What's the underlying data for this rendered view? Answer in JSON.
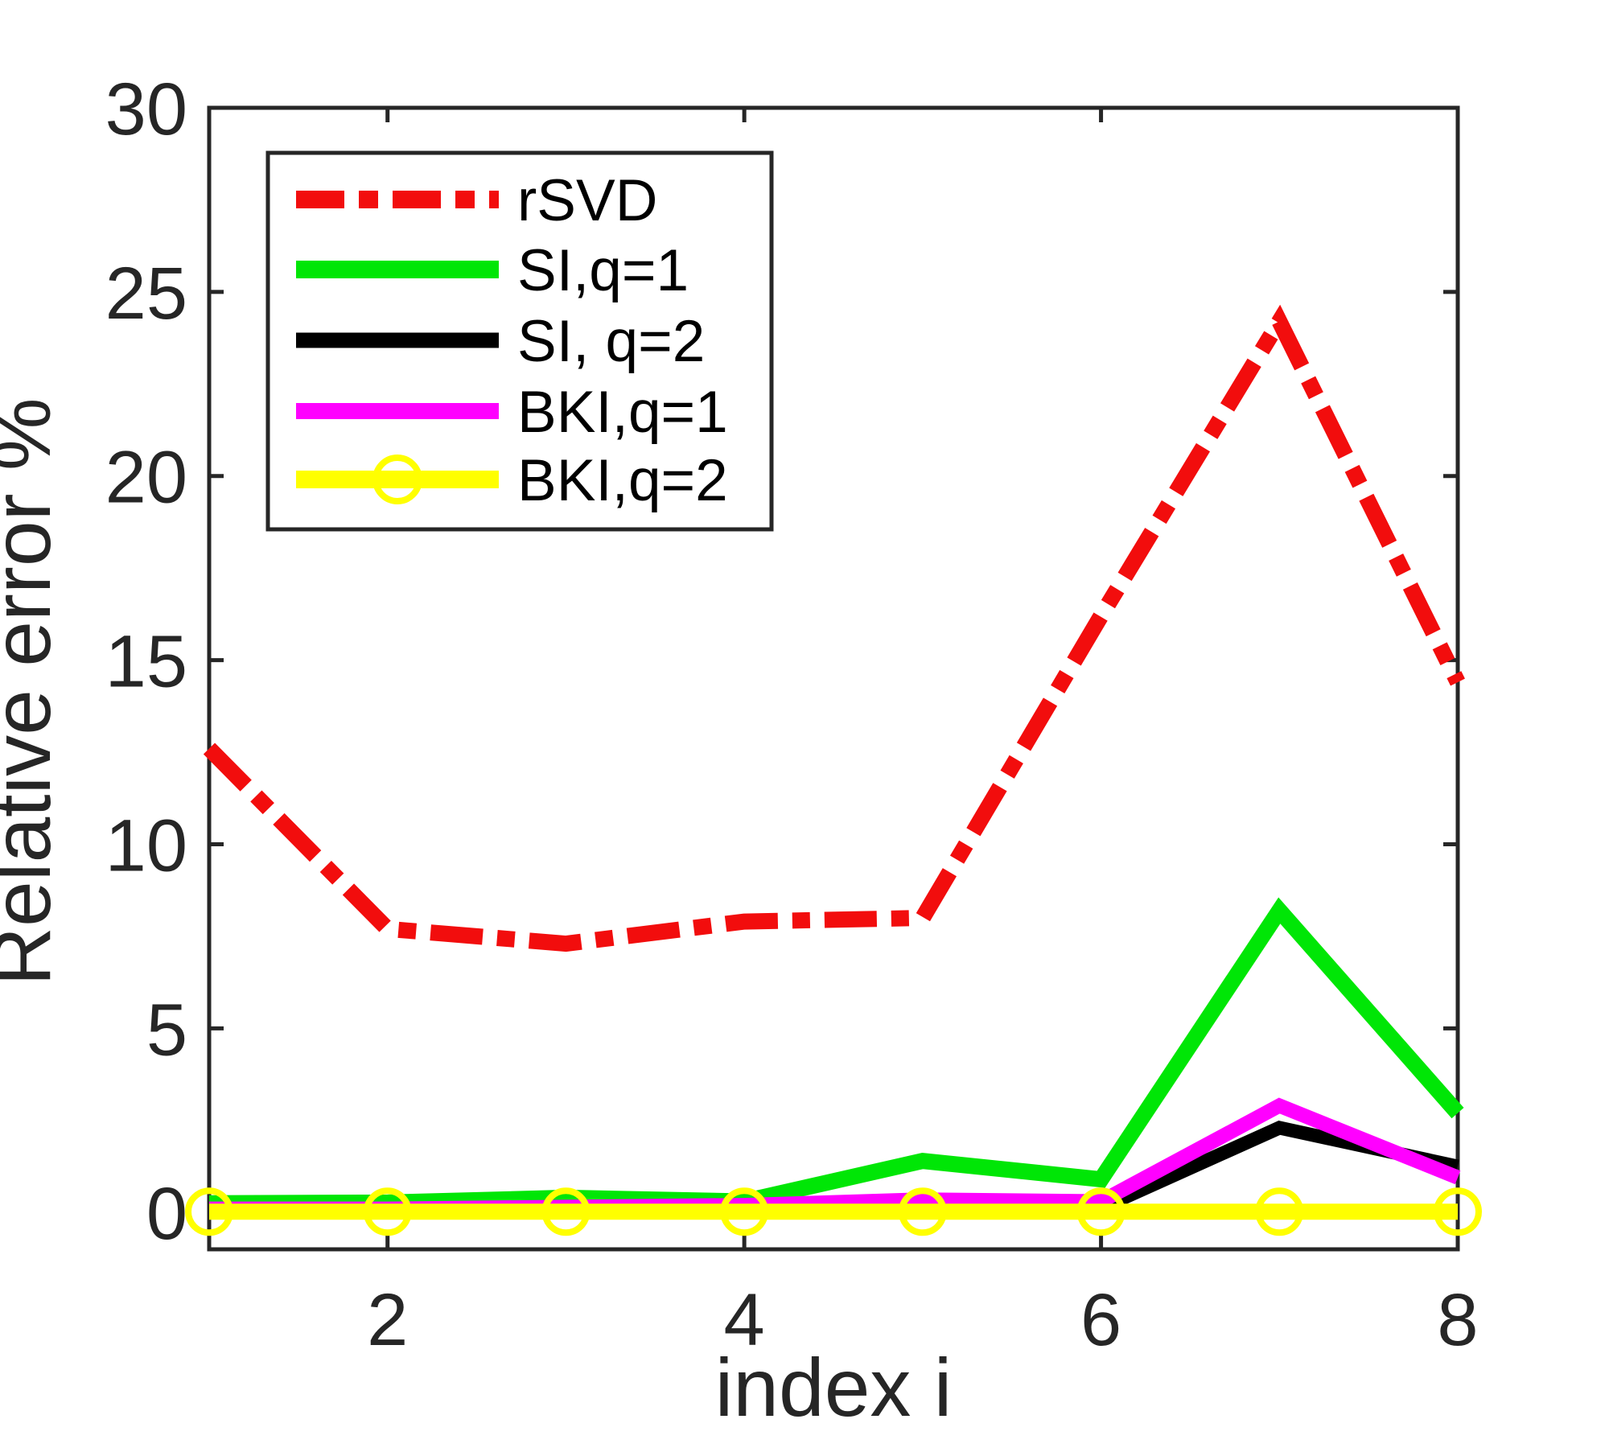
{
  "figure": {
    "xlabel": "index i",
    "ylabel": "Relative error %",
    "background_color": "#ffffff",
    "axis_color": "#262626"
  },
  "chart_data": {
    "type": "line",
    "title": "",
    "xlabel": "index i",
    "ylabel": "Relative error %",
    "xlim": [
      1,
      8
    ],
    "ylim": [
      -1,
      30
    ],
    "grid": false,
    "legend_position": "top-left",
    "x": [
      1,
      2,
      3,
      4,
      5,
      6,
      7,
      8
    ],
    "xticks": [
      "2",
      "4",
      "6",
      "8"
    ],
    "xtick_values": [
      2,
      4,
      6,
      8
    ],
    "yticks": [
      "0",
      "5",
      "10",
      "15",
      "20",
      "25",
      "30"
    ],
    "ytick_values": [
      0,
      5,
      10,
      15,
      20,
      25,
      30
    ],
    "series": [
      {
        "name": "rSVD",
        "color": "#f20d0d",
        "line_style": "dash-dot",
        "line_width": 20,
        "marker": "none",
        "values": [
          12.6,
          7.7,
          7.3,
          7.9,
          8.0,
          16.2,
          24.2,
          14.4
        ]
      },
      {
        "name": "SI,q=1",
        "color": "#00e606",
        "line_style": "solid",
        "line_width": 20,
        "marker": "none",
        "values": [
          0.25,
          0.27,
          0.4,
          0.3,
          1.4,
          0.9,
          8.2,
          2.7
        ]
      },
      {
        "name": "SI, q=2",
        "color": "#000000",
        "line_style": "solid",
        "line_width": 17,
        "marker": "none",
        "values": [
          0.05,
          0.05,
          0.05,
          0.08,
          0.1,
          0.12,
          2.3,
          1.25
        ]
      },
      {
        "name": "BKI,q=1",
        "color": "#ff00ff",
        "line_style": "solid",
        "line_width": 18,
        "marker": "none",
        "values": [
          0.1,
          0.1,
          0.15,
          0.2,
          0.35,
          0.3,
          2.9,
          0.95
        ]
      },
      {
        "name": "BKI,q=2",
        "color": "#ffff00",
        "line_style": "solid",
        "line_width": 20,
        "marker": "circle",
        "values": [
          0.02,
          0.02,
          0.02,
          0.02,
          0.02,
          0.02,
          0.02,
          0.02
        ]
      }
    ]
  }
}
